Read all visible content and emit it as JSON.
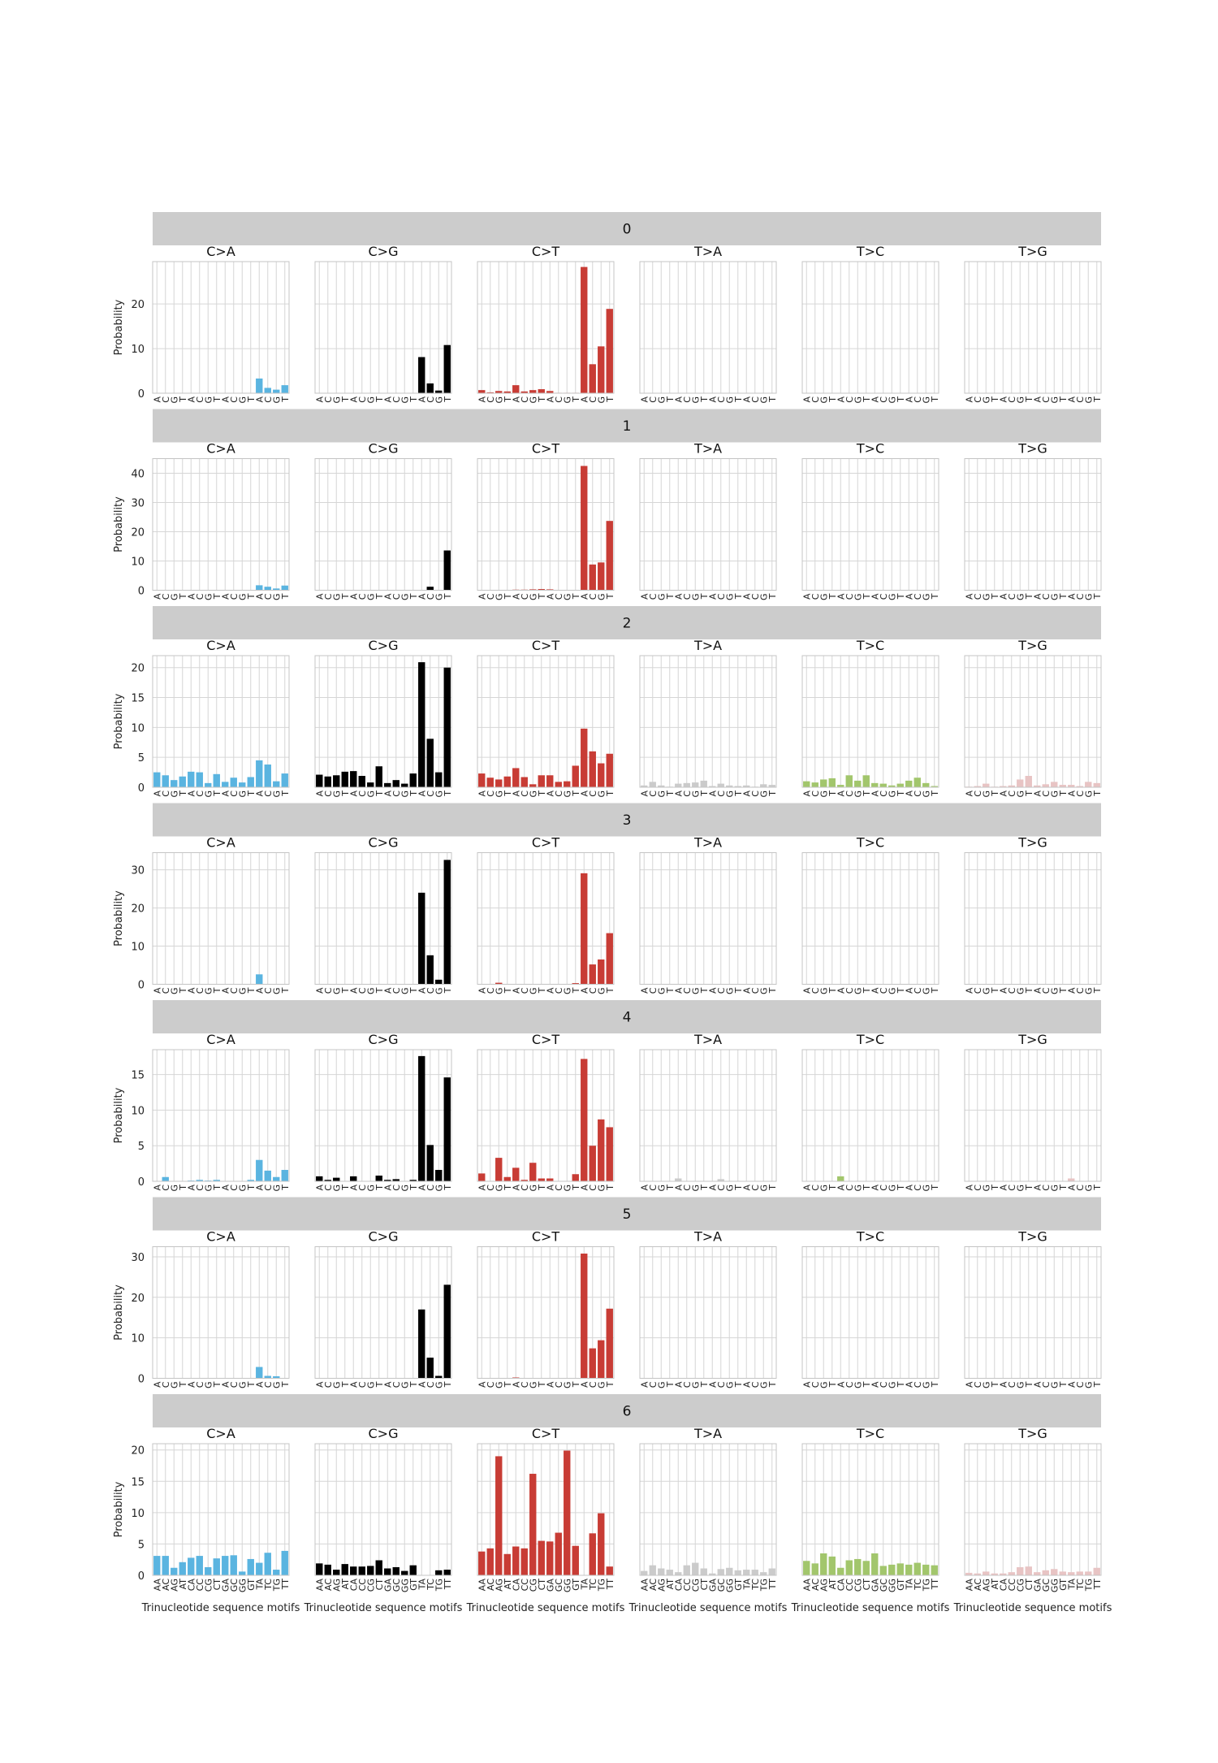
{
  "chart_data": {
    "type": "bar",
    "title": "",
    "ylabel": "Probability",
    "xlabel": "Trinucleotide sequence motifs",
    "panel_titles": [
      "C>A",
      "C>G",
      "C>T",
      "T>A",
      "T>C",
      "T>G"
    ],
    "categories": [
      "AA",
      "AC",
      "AG",
      "AT",
      "CA",
      "CC",
      "CG",
      "CT",
      "GA",
      "GC",
      "GG",
      "GT",
      "TA",
      "TC",
      "TG",
      "TT"
    ],
    "tick_text": [
      "A",
      "C",
      "G",
      "T",
      "A",
      "C",
      "G",
      "T",
      "A",
      "C",
      "G",
      "T",
      "A",
      "C",
      "G",
      "T"
    ],
    "last_row_tick_text": [
      "AA",
      "AC",
      "AG",
      "AT",
      "CA",
      "CC",
      "CG",
      "CT",
      "GA",
      "GC",
      "GG",
      "GT",
      "TA",
      "TC",
      "TG",
      "TT"
    ],
    "colors": {
      "C>A": "#5ab4e0",
      "C>G": "#000000",
      "C>T": "#c83c35",
      "T>A": "#cbcbcb",
      "T>C": "#a2c66c",
      "T>G": "#e8c4c4",
      "strip": "#cccccc",
      "grid": "#d6d6d6"
    },
    "grid": true,
    "signatures": [
      {
        "name": "0",
        "yticks": [
          "0",
          "10",
          "20"
        ],
        "ylim": [
          0,
          29.5
        ],
        "values": {
          "C>A": [
            0,
            0,
            0,
            0,
            0,
            0,
            0,
            0,
            0,
            0,
            0,
            0,
            3.3,
            1.2,
            0.8,
            1.8
          ],
          "C>G": [
            0,
            0,
            0,
            0,
            0,
            0,
            0,
            0,
            0,
            0,
            0,
            0,
            8.1,
            2.2,
            0.6,
            10.8
          ],
          "C>T": [
            0.7,
            0.2,
            0.5,
            0.4,
            1.8,
            0.4,
            0.7,
            0.9,
            0.5,
            0.1,
            0.1,
            0.1,
            28.3,
            6.5,
            10.5,
            18.9
          ],
          "T>A": [
            0,
            0,
            0,
            0,
            0,
            0,
            0,
            0,
            0,
            0,
            0,
            0,
            0,
            0,
            0,
            0
          ],
          "T>C": [
            0,
            0,
            0,
            0,
            0,
            0,
            0,
            0,
            0,
            0,
            0,
            0,
            0,
            0,
            0,
            0
          ],
          "T>G": [
            0,
            0,
            0,
            0,
            0,
            0,
            0,
            0,
            0,
            0,
            0,
            0,
            0,
            0,
            0,
            0
          ]
        }
      },
      {
        "name": "1",
        "yticks": [
          "0",
          "10",
          "20",
          "30",
          "40"
        ],
        "ylim": [
          0,
          45
        ],
        "values": {
          "C>A": [
            0,
            0,
            0,
            0,
            0,
            0,
            0,
            0,
            0,
            0,
            0,
            0,
            1.7,
            1.2,
            0.6,
            1.6
          ],
          "C>G": [
            0,
            0,
            0,
            0,
            0,
            0,
            0,
            0,
            0,
            0,
            0,
            0,
            0,
            1.2,
            0,
            13.6
          ],
          "C>T": [
            0,
            0,
            0,
            0,
            0.2,
            0.2,
            0.3,
            0.4,
            0.3,
            0.1,
            0,
            0,
            42.5,
            8.8,
            9.5,
            23.7
          ],
          "T>A": [
            0,
            0,
            0,
            0,
            0,
            0,
            0,
            0,
            0,
            0,
            0,
            0,
            0,
            0,
            0,
            0
          ],
          "T>C": [
            0,
            0,
            0,
            0,
            0,
            0,
            0,
            0,
            0,
            0,
            0,
            0,
            0,
            0,
            0,
            0
          ],
          "T>G": [
            0,
            0,
            0,
            0,
            0,
            0,
            0,
            0,
            0,
            0,
            0,
            0,
            0,
            0,
            0,
            0
          ]
        }
      },
      {
        "name": "2",
        "yticks": [
          "0",
          "5",
          "10",
          "15",
          "20"
        ],
        "ylim": [
          0,
          22
        ],
        "values": {
          "C>A": [
            2.5,
            2.0,
            1.2,
            1.8,
            2.6,
            2.5,
            0.7,
            2.2,
            0.9,
            1.6,
            0.8,
            1.7,
            4.5,
            3.8,
            1.0,
            2.3
          ],
          "C>G": [
            2.1,
            1.8,
            2.0,
            2.6,
            2.7,
            1.9,
            0.8,
            3.5,
            0.7,
            1.2,
            0.6,
            2.3,
            20.9,
            8.1,
            2.5,
            20.0
          ],
          "C>T": [
            2.3,
            1.6,
            1.3,
            1.8,
            3.2,
            1.7,
            0.5,
            2.0,
            2.0,
            0.9,
            1.0,
            3.6,
            9.8,
            6.0,
            4.0,
            5.6
          ],
          "T>A": [
            0.3,
            0.9,
            0.3,
            0.1,
            0.6,
            0.7,
            0.8,
            1.1,
            0.2,
            0.6,
            0.3,
            0.2,
            0.3,
            0.1,
            0.5,
            0.4
          ],
          "T>C": [
            1.0,
            0.8,
            1.3,
            1.5,
            0.4,
            2.0,
            1.1,
            2.0,
            0.7,
            0.6,
            0.3,
            0.6,
            1.1,
            1.6,
            0.7,
            0.2
          ],
          "T>G": [
            0.1,
            0.2,
            0.6,
            0.1,
            0.2,
            0.3,
            1.3,
            1.9,
            0.3,
            0.5,
            0.9,
            0.4,
            0.4,
            0.2,
            0.9,
            0.7
          ]
        }
      },
      {
        "name": "3",
        "yticks": [
          "0",
          "10",
          "20",
          "30"
        ],
        "ylim": [
          0,
          34.5
        ],
        "values": {
          "C>A": [
            0,
            0,
            0,
            0,
            0,
            0,
            0,
            0,
            0,
            0,
            0,
            0,
            2.6,
            0,
            0,
            0
          ],
          "C>G": [
            0,
            0,
            0,
            0,
            0,
            0,
            0,
            0,
            0,
            0,
            0,
            0,
            24.0,
            7.6,
            1.2,
            32.6
          ],
          "C>T": [
            0,
            0,
            0.4,
            0,
            0.1,
            0,
            0,
            0,
            0,
            0.1,
            0,
            0.3,
            29.1,
            5.2,
            6.5,
            13.4
          ],
          "T>A": [
            0,
            0,
            0,
            0,
            0,
            0,
            0,
            0,
            0,
            0,
            0,
            0,
            0,
            0,
            0,
            0
          ],
          "T>C": [
            0,
            0,
            0,
            0,
            0,
            0,
            0,
            0,
            0,
            0,
            0,
            0,
            0,
            0,
            0,
            0
          ],
          "T>G": [
            0,
            0,
            0,
            0,
            0,
            0,
            0,
            0,
            0,
            0,
            0,
            0,
            0,
            0,
            0,
            0
          ]
        }
      },
      {
        "name": "4",
        "yticks": [
          "0",
          "5",
          "10",
          "15"
        ],
        "ylim": [
          0,
          18.5
        ],
        "values": {
          "C>A": [
            0,
            0.6,
            0,
            0,
            0.1,
            0.2,
            0.1,
            0.2,
            0,
            0,
            0,
            0.2,
            3.0,
            1.5,
            0.6,
            1.6
          ],
          "C>G": [
            0.7,
            0.2,
            0.5,
            0,
            0.7,
            0,
            0,
            0.8,
            0.2,
            0.3,
            0,
            0.2,
            17.6,
            5.1,
            1.6,
            14.6
          ],
          "C>T": [
            1.1,
            0,
            3.3,
            0.6,
            1.9,
            0.2,
            2.6,
            0.4,
            0.4,
            0,
            0,
            1.0,
            17.2,
            5.0,
            8.7,
            7.6
          ],
          "T>A": [
            0,
            0,
            0,
            0,
            0.4,
            0,
            0,
            0,
            0,
            0.3,
            0,
            0,
            0,
            0,
            0,
            0
          ],
          "T>C": [
            0,
            0,
            0,
            0,
            0.7,
            0,
            0,
            0,
            0,
            0,
            0,
            0,
            0,
            0,
            0,
            0
          ],
          "T>G": [
            0,
            0,
            0,
            0,
            0,
            0,
            0,
            0,
            0,
            0,
            0,
            0,
            0.4,
            0,
            0,
            0
          ]
        }
      },
      {
        "name": "5",
        "yticks": [
          "0",
          "10",
          "20",
          "30"
        ],
        "ylim": [
          0,
          32.5
        ],
        "values": {
          "C>A": [
            0,
            0,
            0,
            0,
            0,
            0,
            0,
            0,
            0,
            0,
            0,
            0,
            2.8,
            0.6,
            0.5,
            0.1
          ],
          "C>G": [
            0,
            0,
            0,
            0,
            0,
            0,
            0,
            0,
            0,
            0,
            0,
            0,
            17.0,
            5.1,
            0.6,
            23.1
          ],
          "C>T": [
            0,
            0,
            0,
            0,
            0.2,
            0,
            0,
            0,
            0,
            0,
            0,
            0,
            30.8,
            7.4,
            9.4,
            17.2
          ],
          "T>A": [
            0,
            0,
            0,
            0,
            0,
            0,
            0,
            0,
            0,
            0,
            0,
            0,
            0,
            0,
            0,
            0
          ],
          "T>C": [
            0,
            0,
            0,
            0,
            0,
            0,
            0,
            0,
            0,
            0,
            0,
            0,
            0,
            0,
            0,
            0
          ],
          "T>G": [
            0,
            0,
            0,
            0,
            0,
            0,
            0,
            0,
            0,
            0,
            0,
            0,
            0,
            0,
            0,
            0
          ]
        }
      },
      {
        "name": "6",
        "yticks": [
          "0",
          "5",
          "10",
          "15",
          "20"
        ],
        "ylim": [
          0,
          21
        ],
        "values": {
          "C>A": [
            3.1,
            3.1,
            1.2,
            2.1,
            2.8,
            3.1,
            1.3,
            2.7,
            3.1,
            3.2,
            0.6,
            2.6,
            2.0,
            3.6,
            0.9,
            3.9
          ],
          "C>G": [
            1.9,
            1.7,
            0.9,
            1.8,
            1.4,
            1.4,
            1.5,
            2.4,
            1.1,
            1.3,
            0.7,
            1.6,
            0,
            0,
            0.8,
            0.9
          ],
          "C>T": [
            3.8,
            4.3,
            19.0,
            3.4,
            4.6,
            4.3,
            16.2,
            5.5,
            5.4,
            6.8,
            19.9,
            4.7,
            0,
            6.7,
            9.9,
            1.4
          ],
          "T>A": [
            0.7,
            1.6,
            1.1,
            0.9,
            0.5,
            1.6,
            2.0,
            1.1,
            0.3,
            1.0,
            1.2,
            0.8,
            0.9,
            0.9,
            0.5,
            1.1
          ],
          "T>C": [
            2.3,
            1.9,
            3.5,
            3.0,
            1.2,
            2.4,
            2.6,
            2.3,
            3.5,
            1.5,
            1.7,
            1.9,
            1.7,
            2.0,
            1.7,
            1.6
          ],
          "T>G": [
            0.4,
            0.3,
            0.6,
            0.3,
            0.3,
            0.5,
            1.3,
            1.4,
            0.5,
            0.8,
            1.0,
            0.6,
            0.5,
            0.6,
            0.6,
            1.2
          ]
        }
      }
    ]
  }
}
